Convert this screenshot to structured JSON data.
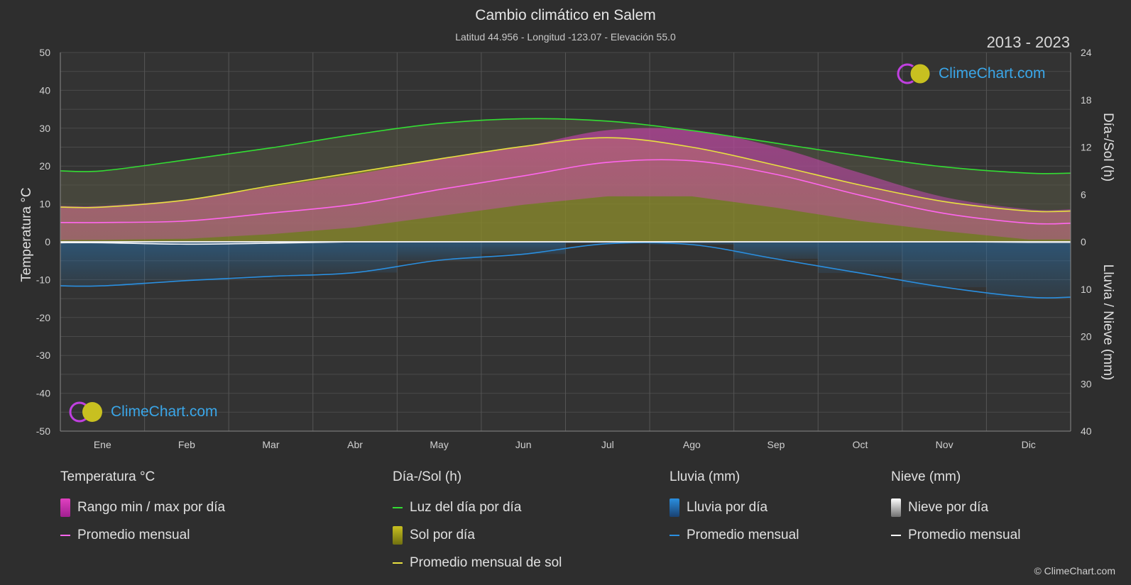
{
  "header": {
    "title": "Cambio climático en Salem",
    "subtitle": "Latitud 44.956 - Longitud -123.07 - Elevación 55.0",
    "years": "2013 - 2023"
  },
  "logo": {
    "text": "ClimeChart.com"
  },
  "copyright": "© ClimeChart.com",
  "legend": {
    "temperature": {
      "heading": "Temperatura °C",
      "range_label": "Rango min / max por día",
      "avg_label": "Promedio mensual"
    },
    "daylight": {
      "heading": "Día-/Sol (h)",
      "daylight_label": "Luz del día por día",
      "sun_label": "Sol por día",
      "sun_avg_label": "Promedio mensual de sol"
    },
    "rain": {
      "heading": "Lluvia (mm)",
      "rain_label": "Lluvia por día",
      "avg_label": "Promedio mensual"
    },
    "snow": {
      "heading": "Nieve (mm)",
      "snow_label": "Nieve por día",
      "avg_label": "Promedio mensual"
    }
  },
  "colors": {
    "background": "#2e2e2e",
    "daylight": "#33dd33",
    "sun_avg": "#e8e040",
    "temp_avg": "#ff66ee",
    "rain_avg": "#2a8fe0",
    "snow_avg": "#ffffff",
    "temp_range": "#e040c0",
    "sun_fill": "#a0a020",
    "rain_fill": "#2a70a8"
  },
  "chart_data": {
    "type": "area",
    "months": [
      "Ene",
      "Feb",
      "Mar",
      "Abr",
      "May",
      "Jun",
      "Jul",
      "Ago",
      "Sep",
      "Oct",
      "Nov",
      "Dic"
    ],
    "axes": {
      "left": {
        "label": "Temperatura °C",
        "min": -50,
        "max": 50,
        "ticks": [
          50,
          40,
          30,
          20,
          10,
          0,
          -10,
          -20,
          -30,
          -40,
          -50
        ]
      },
      "right_top": {
        "label": "Día-/Sol (h)",
        "min": 0,
        "max": 24,
        "ticks": [
          24,
          18,
          12,
          6,
          0
        ]
      },
      "right_bottom": {
        "label": "Lluvia / Nieve (mm)",
        "min": 0,
        "max": 40,
        "ticks": [
          0,
          10,
          20,
          30,
          40
        ]
      }
    },
    "series": [
      {
        "name": "Luz del día por día",
        "unit": "h",
        "values": [
          9.0,
          10.4,
          11.9,
          13.6,
          15.0,
          15.6,
          15.3,
          14.1,
          12.5,
          10.9,
          9.5,
          8.7
        ]
      },
      {
        "name": "Promedio mensual de sol",
        "unit": "h",
        "values": [
          4.4,
          5.3,
          7.1,
          8.8,
          10.5,
          12.1,
          13.2,
          12.0,
          9.7,
          7.2,
          5.1,
          3.9
        ]
      },
      {
        "name": "Promedio mensual",
        "group": "Temperatura °C",
        "unit": "°C",
        "values": [
          5.1,
          5.5,
          7.6,
          9.9,
          13.8,
          17.4,
          21.0,
          21.4,
          17.8,
          12.3,
          7.5,
          4.9
        ]
      },
      {
        "name": "Rango min / max por día",
        "group": "Temperatura °C",
        "unit": "°C",
        "min": [
          0.5,
          0.8,
          2.0,
          3.8,
          6.8,
          9.8,
          12.0,
          12.0,
          9.0,
          5.5,
          2.8,
          0.6
        ],
        "max": [
          9.5,
          11.2,
          14.5,
          17.8,
          21.8,
          25.2,
          29.5,
          29.5,
          25.0,
          18.2,
          11.8,
          8.6
        ]
      },
      {
        "name": "Promedio mensual",
        "group": "Lluvia (mm)",
        "unit": "mm",
        "values": [
          9.3,
          8.2,
          7.3,
          6.5,
          3.9,
          2.6,
          0.4,
          0.6,
          3.6,
          6.6,
          9.6,
          11.7
        ]
      },
      {
        "name": "Promedio mensual",
        "group": "Nieve (mm)",
        "unit": "mm",
        "values": [
          0.2,
          0.5,
          0.3,
          0.0,
          0.0,
          0.0,
          0.0,
          0.0,
          0.0,
          0.0,
          0.0,
          0.1
        ]
      }
    ],
    "grid": true
  }
}
